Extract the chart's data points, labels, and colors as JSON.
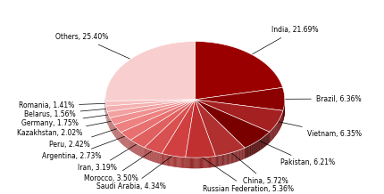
{
  "labels": [
    "India",
    "Brazil",
    "Vietnam",
    "Pakistan",
    "China",
    "Russian Federation",
    "Saudi Arabia",
    "Morocco",
    "Iran",
    "Argentina",
    "Peru",
    "Kazakhstan",
    "Germany",
    "Belarus",
    "Romania",
    "Others"
  ],
  "values": [
    21.69,
    6.36,
    6.35,
    6.21,
    5.72,
    5.36,
    4.34,
    3.5,
    3.19,
    2.73,
    2.42,
    2.02,
    1.75,
    1.56,
    1.41,
    25.4
  ],
  "colors_top": [
    "#9B0000",
    "#8B0000",
    "#A52020",
    "#7A0000",
    "#B03030",
    "#C03030",
    "#D04040",
    "#D85050",
    "#E06060",
    "#E87070",
    "#ED8080",
    "#F09090",
    "#F2A0A0",
    "#F4B0B0",
    "#F6C0C0",
    "#F9CECE"
  ],
  "colors_side": [
    "#6B0000",
    "#5B0000",
    "#721515",
    "#4A0000",
    "#802020",
    "#902020",
    "#A03030",
    "#A84040",
    "#B05050",
    "#B86060",
    "#BD7070",
    "#C08080",
    "#C29090",
    "#C4A0A0",
    "#C6B0B0",
    "#C9BEBE"
  ],
  "startangle": 90,
  "depth": 0.12,
  "background_color": "#ffffff",
  "label_color": "#000000",
  "label_fontsize": 5.5
}
